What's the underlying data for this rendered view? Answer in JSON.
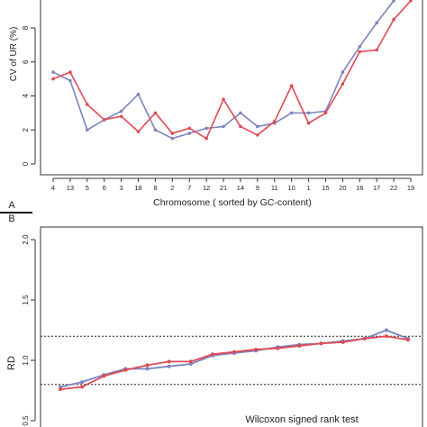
{
  "chart_data": [
    {
      "type": "line",
      "panel": "A",
      "xlabel": "Chromosome ( sorted by GC-content)",
      "ylabel": "CV of UR (%)",
      "categories": [
        "4",
        "13",
        "5",
        "6",
        "3",
        "18",
        "8",
        "2",
        "7",
        "12",
        "21",
        "14",
        "9",
        "11",
        "10",
        "1",
        "15",
        "20",
        "16",
        "17",
        "22",
        "19"
      ],
      "ylim": [
        0,
        9.5
      ],
      "yticks": [
        0,
        2,
        4,
        6,
        8
      ],
      "grid": false,
      "series": [
        {
          "color": "#7b83bd",
          "values": [
            5.4,
            4.9,
            2.0,
            2.6,
            3.1,
            4.1,
            2.0,
            1.5,
            1.8,
            2.1,
            2.2,
            3.0,
            2.2,
            2.4,
            3.0,
            3.0,
            3.1,
            5.4,
            6.9,
            8.3,
            9.6,
            null
          ]
        },
        {
          "color": "#e04a55",
          "values": [
            5.0,
            5.4,
            3.5,
            2.6,
            2.8,
            1.9,
            3.0,
            1.8,
            2.1,
            1.5,
            3.8,
            2.2,
            1.7,
            2.5,
            4.6,
            2.4,
            3.0,
            4.7,
            6.6,
            6.7,
            8.5,
            9.6
          ]
        }
      ]
    },
    {
      "type": "line",
      "panel": "B",
      "ylabel": "RD",
      "ylim": [
        0.48,
        2.05
      ],
      "yticks": [
        "0.5",
        "1.0",
        "1.5",
        "2.0"
      ],
      "reference_lines": [
        1.2,
        0.8
      ],
      "annotation": "Wilcoxon signed rank test",
      "series": [
        {
          "color": "#7b83bd",
          "values": [
            0.78,
            0.82,
            0.88,
            0.93,
            0.93,
            0.95,
            0.97,
            1.04,
            1.06,
            1.08,
            1.11,
            1.13,
            1.14,
            1.16,
            1.18,
            1.25,
            1.18
          ]
        },
        {
          "color": "#e04a55",
          "values": [
            0.76,
            0.78,
            0.87,
            0.92,
            0.96,
            0.99,
            0.99,
            1.05,
            1.07,
            1.09,
            1.1,
            1.12,
            1.14,
            1.15,
            1.18,
            1.2,
            1.17
          ]
        }
      ]
    }
  ]
}
